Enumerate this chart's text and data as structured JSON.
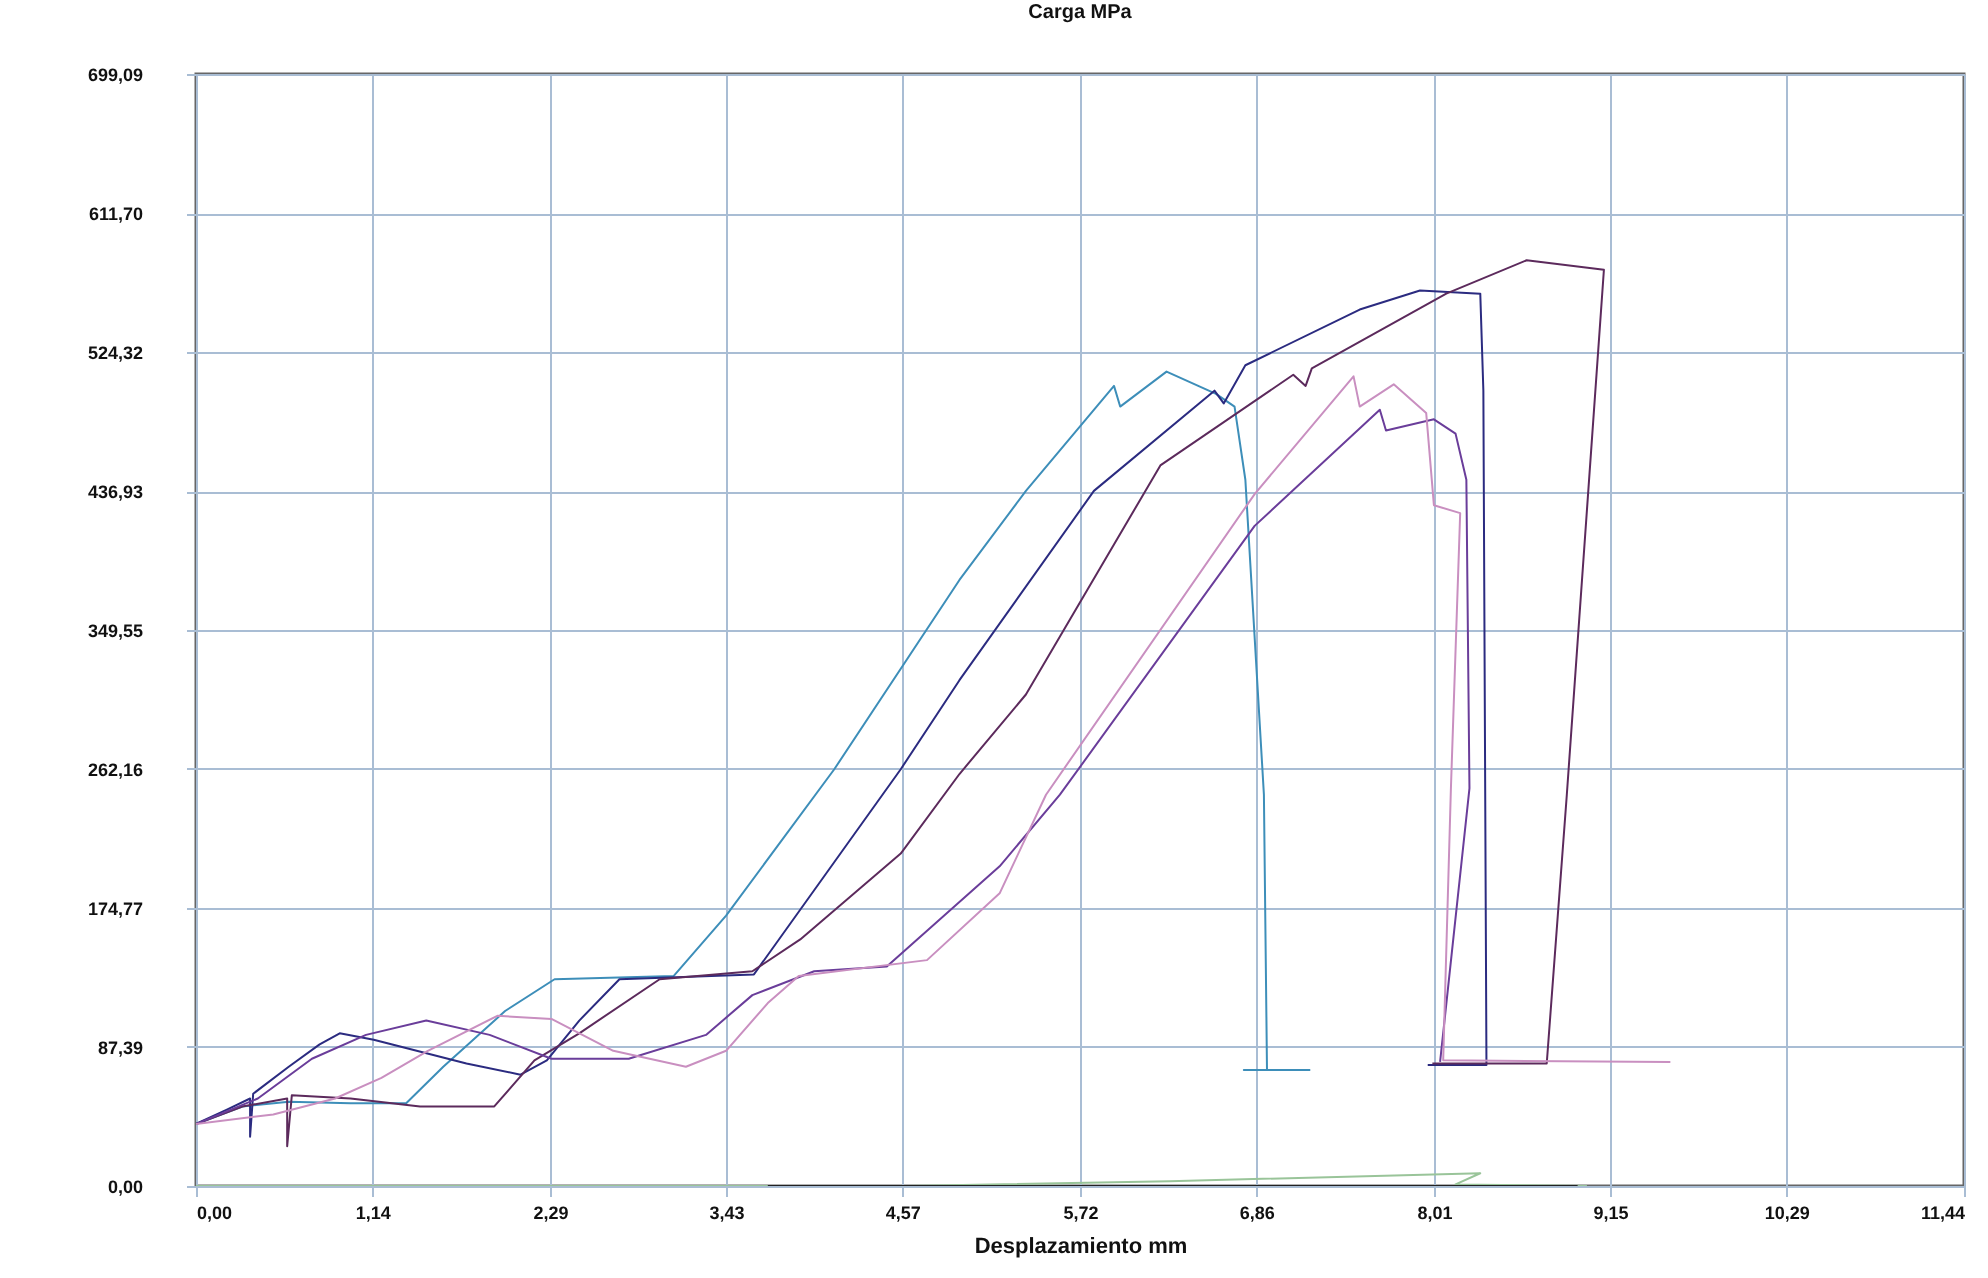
{
  "chart_data": {
    "type": "line",
    "title": "Carga  MPa",
    "xlabel": "Desplazamiento   mm",
    "xlim": [
      0,
      11.44
    ],
    "ylim": [
      0,
      699.09
    ],
    "xticks": [
      {
        "value": 0,
        "label": "0,00"
      },
      {
        "value": 1.14,
        "label": "1,14"
      },
      {
        "value": 2.29,
        "label": "2,29"
      },
      {
        "value": 3.43,
        "label": "3,43"
      },
      {
        "value": 4.57,
        "label": "4,57"
      },
      {
        "value": 5.72,
        "label": "5,72"
      },
      {
        "value": 6.86,
        "label": "6,86"
      },
      {
        "value": 8.01,
        "label": "8,01"
      },
      {
        "value": 9.15,
        "label": "9,15"
      },
      {
        "value": 10.29,
        "label": "10,29"
      },
      {
        "value": 11.44,
        "label": "11,44"
      }
    ],
    "yticks": [
      {
        "value": 0,
        "label": "0,00"
      },
      {
        "value": 87.39,
        "label": "87,39"
      },
      {
        "value": 174.77,
        "label": "174,77"
      },
      {
        "value": 262.16,
        "label": "262,16"
      },
      {
        "value": 349.55,
        "label": "349,55"
      },
      {
        "value": 436.93,
        "label": "436,93"
      },
      {
        "value": 524.32,
        "label": "524,32"
      },
      {
        "value": 611.7,
        "label": "611,70"
      },
      {
        "value": 699.09,
        "label": "699,09"
      }
    ],
    "grid": true,
    "line_style": "solid",
    "series": [
      {
        "color": "#3d8eb9",
        "x": [
          0,
          0.3,
          0.6,
          1.0,
          1.36,
          1.6,
          2.0,
          2.32,
          3.09,
          3.43,
          4.13,
          4.94,
          5.37,
          5.94,
          5.98,
          6.28,
          6.6,
          6.72,
          6.79,
          6.91,
          6.93,
          6.78,
          7.21
        ],
        "values": [
          39,
          50,
          53,
          52,
          52,
          75,
          110,
          130,
          132,
          170,
          262,
          381,
          437,
          503,
          490,
          512,
          498,
          490,
          444,
          246,
          73,
          73,
          73
        ]
      },
      {
        "color": "#2b2b80",
        "x": [
          0,
          0.2,
          0.35,
          0.35,
          0.37,
          0.6,
          0.8,
          0.93,
          1.15,
          1.75,
          2.1,
          2.27,
          2.48,
          2.74,
          3.61,
          4.56,
          4.94,
          5.81,
          6.59,
          6.65,
          6.79,
          7.53,
          7.92,
          8.31,
          8.33,
          8.35,
          7.97
        ],
        "values": [
          39,
          48,
          55,
          31,
          58,
          75,
          89,
          96,
          92,
          77,
          70,
          79,
          104,
          130,
          133,
          262,
          318,
          437,
          500,
          492,
          516,
          551,
          563,
          561,
          500,
          76,
          76
        ]
      },
      {
        "color": "#5c2a5c",
        "x": [
          0,
          0.3,
          0.59,
          0.59,
          0.62,
          1.0,
          1.45,
          1.93,
          2.19,
          2.48,
          3.0,
          3.6,
          3.91,
          4.56,
          4.94,
          5.37,
          6.24,
          7.1,
          7.18,
          7.22,
          8.09,
          8.61,
          9.11,
          8.87,
          8.74,
          8.0
        ],
        "values": [
          39,
          50,
          55,
          25,
          57,
          55,
          50,
          50,
          79,
          96,
          130,
          135,
          155,
          209,
          259,
          309,
          453,
          510,
          503,
          514,
          561,
          582,
          576,
          246,
          77,
          77
        ]
      },
      {
        "color": "#6a3d9a",
        "x": [
          0,
          0.4,
          0.75,
          1.1,
          1.49,
          1.9,
          2.3,
          2.8,
          3.3,
          3.6,
          4.0,
          4.47,
          5.2,
          5.59,
          6.85,
          7.66,
          7.7,
          8.01,
          8.15,
          8.22,
          8.24,
          8.05
        ],
        "values": [
          39,
          55,
          80,
          95,
          104,
          95,
          80,
          80,
          95,
          120,
          135,
          138,
          201,
          246,
          415,
          488,
          475,
          482,
          473,
          444,
          250,
          78
        ]
      },
      {
        "color": "#c98fc0",
        "x": [
          0,
          0.5,
          0.9,
          1.2,
          1.5,
          1.95,
          2.3,
          2.7,
          3.17,
          3.43,
          3.7,
          3.9,
          4.73,
          5.2,
          5.5,
          6.85,
          7.49,
          7.53,
          7.75,
          7.96,
          8.01,
          8.18,
          8.12,
          8.07,
          9.54
        ],
        "values": [
          39,
          45,
          55,
          68,
          85,
          107,
          105,
          85,
          75,
          85,
          115,
          132,
          142,
          184,
          246,
          435,
          509,
          490,
          504,
          486,
          428,
          423,
          250,
          79,
          78
        ]
      },
      {
        "color": "#99c499",
        "x": [
          0,
          4.6,
          6.3,
          8.31,
          8.15,
          9.0
        ],
        "values": [
          0,
          0,
          3,
          8,
          1,
          0
        ]
      },
      {
        "color": "#222222",
        "x": [
          3.7,
          8.94
        ],
        "values": [
          0,
          0
        ]
      }
    ]
  }
}
